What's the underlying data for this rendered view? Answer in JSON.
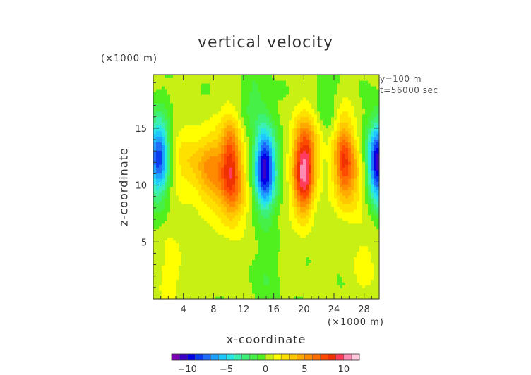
{
  "chart_data": {
    "type": "heatmap",
    "title": "vertical velocity",
    "xlabel": "x-coordinate",
    "ylabel": "z-coordinate",
    "x_unit": "(×1000 m)",
    "y_unit": "(×1000 m)",
    "annotations": [
      "y=100 m",
      "t=56000 sec"
    ],
    "xlim": [
      0,
      30
    ],
    "ylim": [
      0,
      19.7
    ],
    "x_ticks": [
      4,
      8,
      12,
      16,
      20,
      24,
      28
    ],
    "y_ticks": [
      5,
      10,
      15
    ],
    "colorbar": {
      "range": [
        -12,
        12
      ],
      "step": 1,
      "tick_values": [
        -10,
        -5,
        0,
        5,
        10
      ],
      "tick_labels": [
        "−10",
        "−5",
        "0",
        "5",
        "10"
      ],
      "colors": [
        "#7a00b4",
        "#3c00c8",
        "#0000e6",
        "#0a3cf0",
        "#1e6efa",
        "#1ea0ff",
        "#1ec8ff",
        "#28e6e6",
        "#3cf0b4",
        "#3cf078",
        "#46f046",
        "#50f01e",
        "#c8f014",
        "#ffff00",
        "#ffe100",
        "#ffc800",
        "#ffaa00",
        "#ff8c00",
        "#ff6e00",
        "#ff4b00",
        "#f03200",
        "#ff3c5a",
        "#ff8cb4",
        "#ffc8dc"
      ]
    },
    "features": [
      {
        "kind": "updraft",
        "x": 4.5,
        "z": 12,
        "peak": 2.2
      },
      {
        "kind": "updraft",
        "x": 7.5,
        "z": 11.5,
        "peak": 4.8
      },
      {
        "kind": "updraft",
        "x": 10.3,
        "z": 12.5,
        "peak": 6.5
      },
      {
        "kind": "updraft",
        "x": 10.5,
        "z": 9.3,
        "peak": 4.3
      },
      {
        "kind": "updraft",
        "x": 20,
        "z": 10.8,
        "peak": 9.0
      },
      {
        "kind": "updraft",
        "x": 20.5,
        "z": 13.8,
        "peak": 3.5
      },
      {
        "kind": "updraft",
        "x": 25.3,
        "z": 12.5,
        "peak": 6.5
      },
      {
        "kind": "updraft",
        "x": 26.5,
        "z": 10.5,
        "peak": 2.8
      },
      {
        "kind": "downdraft",
        "x": 14.8,
        "z": 11.5,
        "peak": -11.0
      },
      {
        "kind": "downdraft",
        "x": 0.7,
        "z": 12.5,
        "peak": -8.5
      },
      {
        "kind": "downdraft",
        "x": 29.8,
        "z": 12,
        "peak": -11.0
      },
      {
        "kind": "downdraft",
        "x": 13.5,
        "z": 17.5,
        "peak": -1.5
      },
      {
        "kind": "downdraft",
        "x": 23,
        "z": 17,
        "peak": -1.2
      },
      {
        "kind": "downdraft",
        "x": 15,
        "z": 2,
        "peak": -1.0
      },
      {
        "kind": "updraft",
        "x": 2.5,
        "z": 2.5,
        "peak": 1.2
      },
      {
        "kind": "updraft",
        "x": 28,
        "z": 3,
        "peak": 1.0
      }
    ]
  }
}
